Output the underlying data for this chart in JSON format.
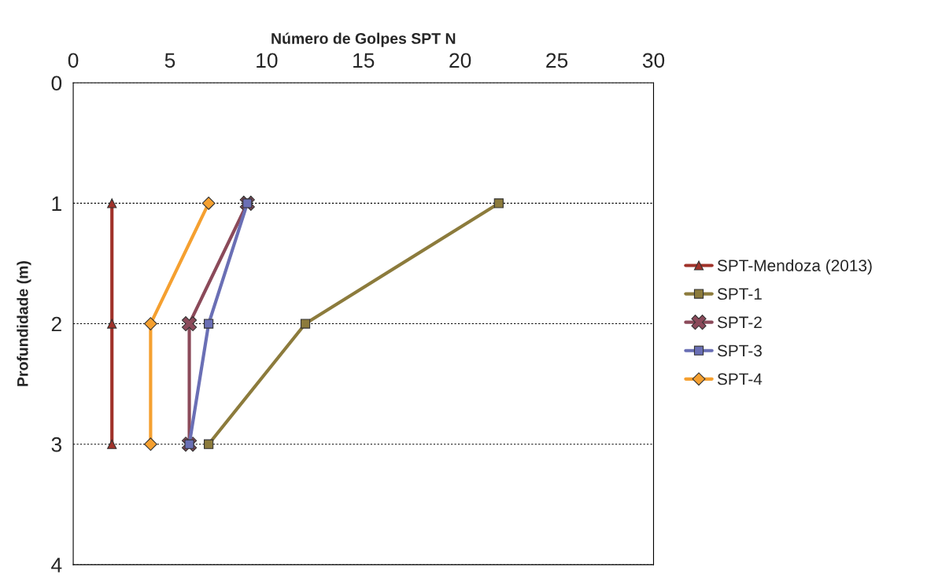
{
  "chart_data": {
    "type": "line",
    "xlabel": "Número de Golpes SPT N",
    "ylabel": "Profundidade (m)",
    "xlim": [
      0,
      30
    ],
    "xticks": [
      0,
      5,
      10,
      15,
      20,
      25,
      30
    ],
    "ylim": [
      4,
      0
    ],
    "yticks": [
      0,
      1,
      2,
      3,
      4
    ],
    "grid": "y",
    "legend": "right",
    "series": [
      {
        "name": "SPT-Mendoza (2013)",
        "color": "#a0322a",
        "marker": "triangle",
        "x": [
          2,
          2,
          2
        ],
        "values": [
          1,
          2,
          3
        ]
      },
      {
        "name": "SPT-1",
        "color": "#8c7b3c",
        "marker": "square",
        "x": [
          22,
          12,
          7
        ],
        "values": [
          1,
          2,
          3
        ]
      },
      {
        "name": "SPT-2",
        "color": "#8b4a5a",
        "marker": "cross",
        "x": [
          9,
          6,
          6
        ],
        "values": [
          1,
          2,
          3
        ]
      },
      {
        "name": "SPT-3",
        "color": "#6a6fb5",
        "marker": "square",
        "x": [
          9,
          7,
          6
        ],
        "values": [
          1,
          2,
          3
        ]
      },
      {
        "name": "SPT-4",
        "color": "#f5a030",
        "marker": "diamond",
        "x": [
          7,
          4,
          4
        ],
        "values": [
          1,
          2,
          3
        ]
      }
    ]
  }
}
